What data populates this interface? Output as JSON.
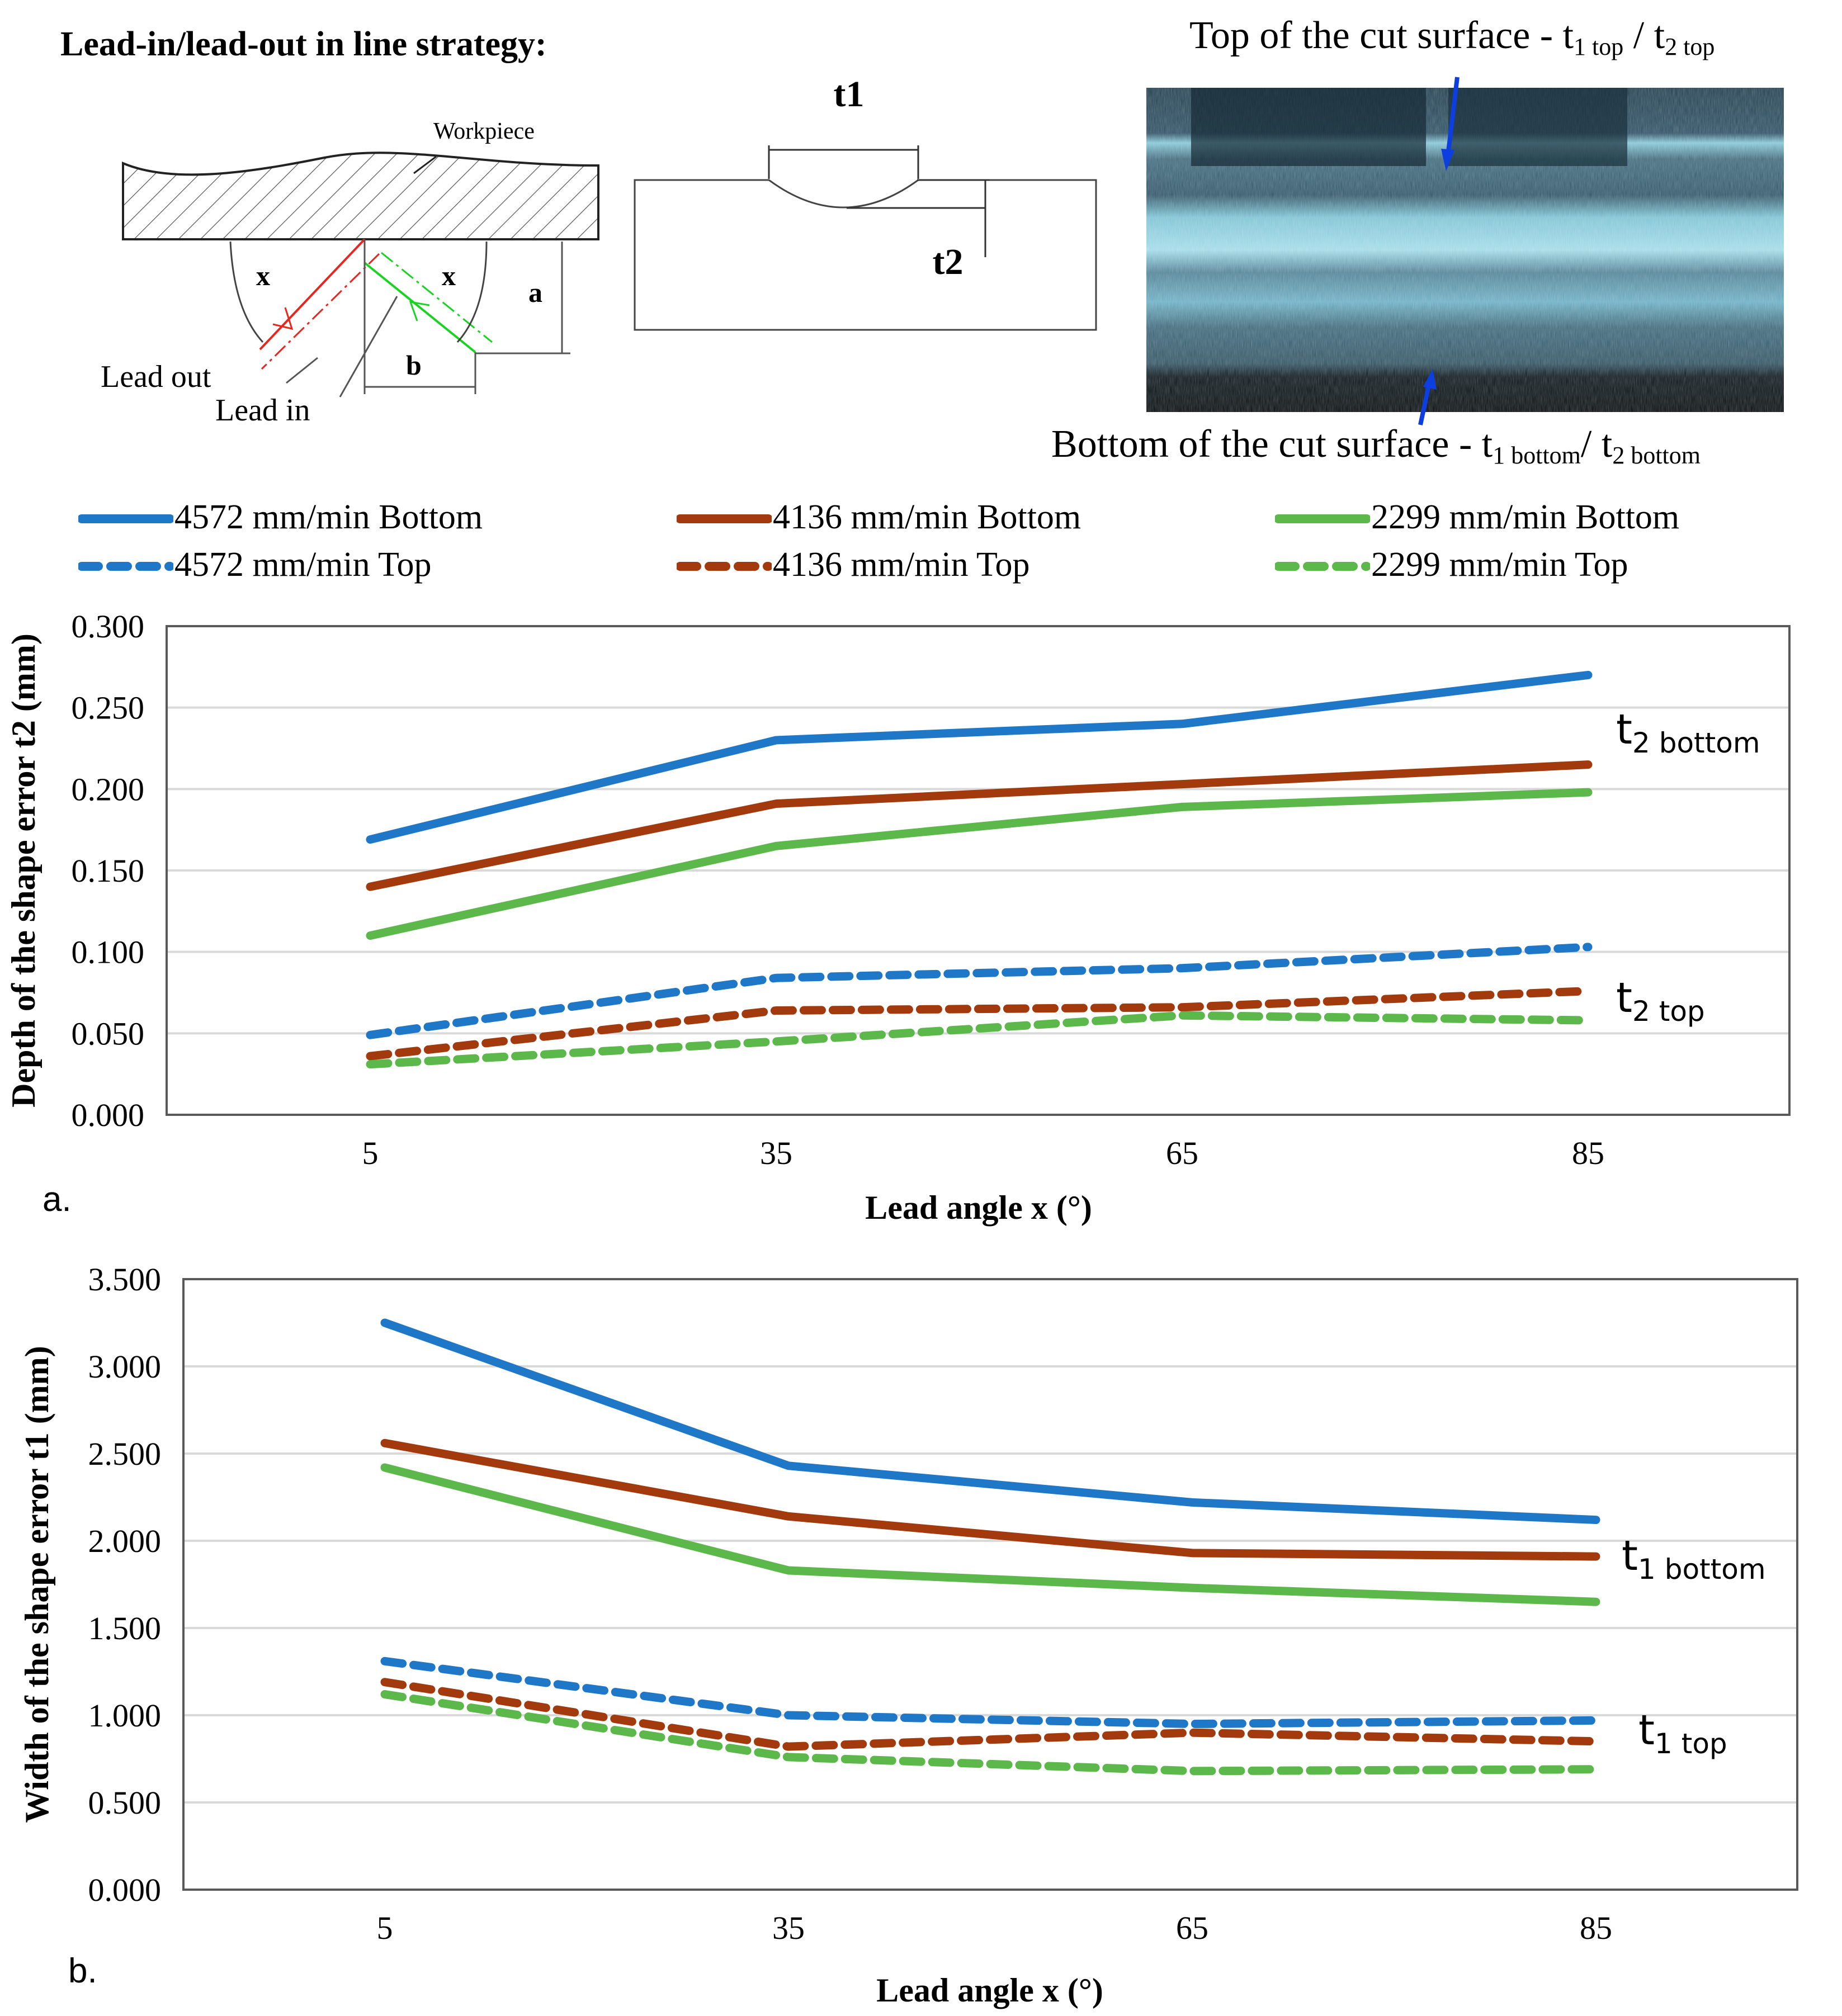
{
  "figure": {
    "strategy_title": "Lead-in/lead-out in line strategy:",
    "sketch": {
      "workpiece_label": "Workpiece",
      "angle_label": "x",
      "a_label": "a",
      "b_label": "b",
      "lead_out_label": "Lead out",
      "lead_in_label": "Lead in"
    },
    "profile": {
      "t1_label": "t1",
      "t2_label": "t2"
    },
    "photo": {
      "top_caption": "Top of the cut surface - t1 top / t2 top",
      "bottom_caption": "Bottom of the cut surface - t1 bottom / t2 bottom"
    },
    "panel_a_label": "a.",
    "panel_b_label": "b."
  },
  "legend": [
    {
      "label": "4572 mm/min Bottom",
      "color": "#1f77c8",
      "dash": false
    },
    {
      "label": "4136 mm/min Bottom",
      "color": "#a33a0d",
      "dash": false
    },
    {
      "label": "2299 mm/min Bottom",
      "color": "#5cb84a",
      "dash": false
    },
    {
      "label": "4572 mm/min Top",
      "color": "#1f77c8",
      "dash": true
    },
    {
      "label": "4136 mm/min Top",
      "color": "#a33a0d",
      "dash": true
    },
    {
      "label": "2299 mm/min Top",
      "color": "#5cb84a",
      "dash": true
    }
  ],
  "chart_data": [
    {
      "type": "line",
      "title": "",
      "xlabel": "Lead angle x (°)",
      "ylabel": "Depth of the shape error t2 (mm)",
      "categories": [
        "5",
        "35",
        "65",
        "85"
      ],
      "yticks": [
        "0.000",
        "0.050",
        "0.100",
        "0.150",
        "0.200",
        "0.250",
        "0.300"
      ],
      "ylim": [
        0,
        0.3
      ],
      "grid": true,
      "series": [
        {
          "name": "4572 mm/min Bottom",
          "values": [
            0.169,
            0.23,
            0.24,
            0.27
          ]
        },
        {
          "name": "4136 mm/min Bottom",
          "values": [
            0.14,
            0.191,
            0.203,
            0.215
          ]
        },
        {
          "name": "2299 mm/min Bottom",
          "values": [
            0.11,
            0.165,
            0.189,
            0.198
          ]
        },
        {
          "name": "4572 mm/min Top",
          "values": [
            0.049,
            0.084,
            0.09,
            0.103
          ]
        },
        {
          "name": "4136 mm/min Top",
          "values": [
            0.036,
            0.064,
            0.066,
            0.076
          ]
        },
        {
          "name": "2299 mm/min Top",
          "values": [
            0.031,
            0.045,
            0.061,
            0.058
          ]
        }
      ],
      "annotations": [
        {
          "text": "t2 bottom",
          "main": "t",
          "sub": "2 bottom"
        },
        {
          "text": "t2 top",
          "main": "t",
          "sub": "2 top"
        }
      ]
    },
    {
      "type": "line",
      "title": "",
      "xlabel": "Lead angle x (°)",
      "ylabel": "Width of the shape error t1 (mm)",
      "categories": [
        "5",
        "35",
        "65",
        "85"
      ],
      "yticks": [
        "0.000",
        "0.500",
        "1.000",
        "1.500",
        "2.000",
        "2.500",
        "3.000",
        "3.500"
      ],
      "ylim": [
        0,
        3.5
      ],
      "grid": true,
      "series": [
        {
          "name": "4572 mm/min Bottom",
          "values": [
            3.25,
            2.43,
            2.22,
            2.12
          ]
        },
        {
          "name": "4136 mm/min Bottom",
          "values": [
            2.56,
            2.14,
            1.93,
            1.91
          ]
        },
        {
          "name": "2299 mm/min Bottom",
          "values": [
            2.42,
            1.83,
            1.73,
            1.65
          ]
        },
        {
          "name": "4572 mm/min Top",
          "values": [
            1.31,
            1.0,
            0.95,
            0.97
          ]
        },
        {
          "name": "4136 mm/min Top",
          "values": [
            1.19,
            0.82,
            0.9,
            0.85
          ]
        },
        {
          "name": "2299 mm/min Top",
          "values": [
            1.12,
            0.76,
            0.68,
            0.69
          ]
        }
      ],
      "annotations": [
        {
          "text": "t1 bottom",
          "main": "t",
          "sub": "1 bottom"
        },
        {
          "text": "t1 top",
          "main": "t",
          "sub": "1 top"
        }
      ]
    }
  ]
}
